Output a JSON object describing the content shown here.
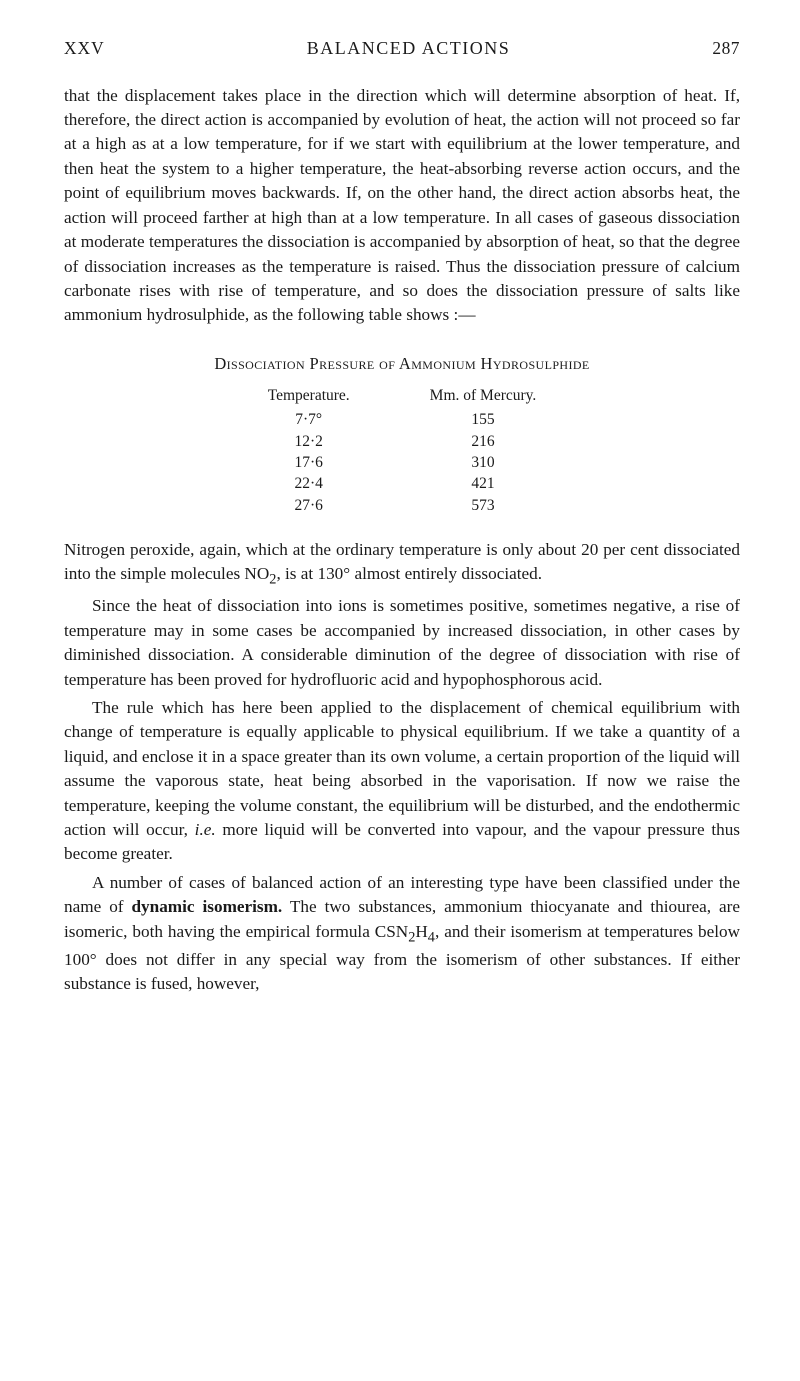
{
  "header": {
    "chapter": "XXV",
    "title": "BALANCED ACTIONS",
    "pageNumber": "287"
  },
  "paragraphs": {
    "p1": "that the displacement takes place in the direction which will determine absorption of heat. If, therefore, the direct action is accompanied by evolution of heat, the action will not proceed so far at a high as at a low temperature, for if we start with equilibrium at the lower temperature, and then heat the system to a higher temperature, the heat-absorbing reverse action occurs, and the point of equilibrium moves backwards. If, on the other hand, the direct action absorbs heat, the action will proceed farther at high than at a low temperature. In all cases of gaseous dissociation at moderate temperatures the dissociation is accompanied by absorption of heat, so that the degree of dissociation increases as the temperature is raised. Thus the dissociation pressure of calcium carbonate rises with rise of temperature, and so does the dissociation pressure of salts like ammonium hydrosulphide, as the following table shows :—",
    "p2a": "Nitrogen peroxide, again, which at the ordinary temperature is only about 20 per cent dissociated into the simple molecules NO",
    "p2b": ", is at 130° almost entirely dissociated.",
    "p3": "Since the heat of dissociation into ions is sometimes positive, sometimes negative, a rise of temperature may in some cases be accompanied by increased dissociation, in other cases by diminished dissociation. A considerable diminution of the degree of dissociation with rise of temperature has been proved for hydrofluoric acid and hypophosphorous acid.",
    "p4a": "The rule which has here been applied to the displacement of chemical equilibrium with change of temperature is equally applicable to physical equilibrium. If we take a quantity of a liquid, and enclose it in a space greater than its own volume, a certain proportion of the liquid will assume the vaporous state, heat being absorbed in the vaporisation. If now we raise the temperature, keeping the volume constant, the equilibrium will be disturbed, and the endothermic action will occur, ",
    "p4b": " more liquid will be converted into vapour, and the vapour pressure thus become greater.",
    "p5a": "A number of cases of balanced action of an interesting type have been classified under the name of ",
    "p5bold": "dynamic isomerism.",
    "p5b": " The two substances, ammonium thiocyanate and thiourea, are isomeric, both having the empirical formula CSN",
    "p5c": "H",
    "p5d": ", and their isomerism at temperatures below 100° does not differ in any special way from the isomerism of other substances. If either substance is fused, however,",
    "ie": "i.e.",
    "sub2": "2",
    "sub4": "4"
  },
  "table": {
    "title": "Dissociation Pressure of Ammonium Hydrosulphide",
    "headers": {
      "temp": "Temperature.",
      "mm": "Mm. of Mercury."
    },
    "temps": [
      "7·7°",
      "12·2",
      "17·6",
      "22·4",
      "27·6"
    ],
    "mms": [
      "155",
      "216",
      "310",
      "421",
      "573"
    ]
  }
}
